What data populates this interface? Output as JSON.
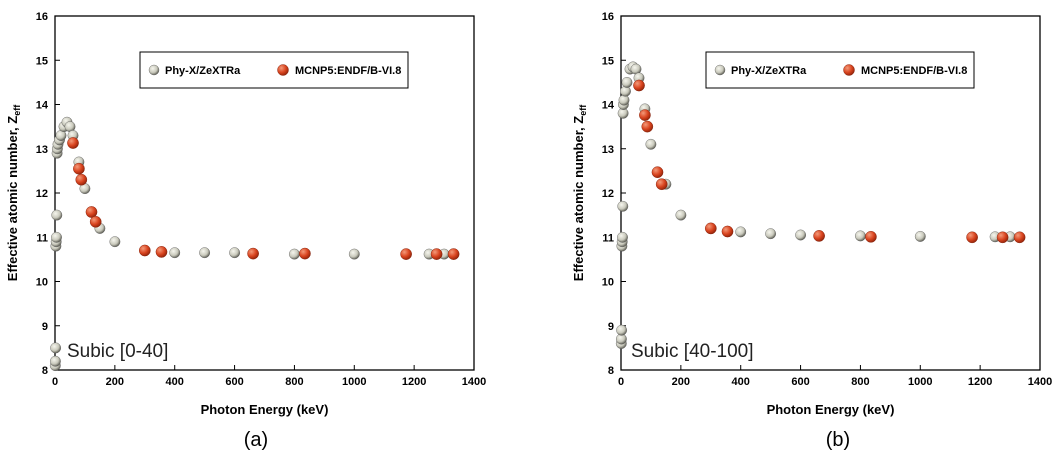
{
  "chart_data": [
    {
      "type": "scatter",
      "panel_label": "(a)",
      "annotation": "Subic [0-40]",
      "xlabel": "Photon Energy (keV)",
      "ylabel_main": "Effective atomic number, Z",
      "ylabel_sub": "eff",
      "xlim": [
        0,
        1400
      ],
      "ylim": [
        8,
        16
      ],
      "xticks": [
        "0",
        "200",
        "400",
        "600",
        "800",
        "1000",
        "1200",
        "1400"
      ],
      "yticks": [
        "8",
        "9",
        "10",
        "11",
        "12",
        "13",
        "14",
        "15",
        "16"
      ],
      "legend_position": "top-right",
      "series": [
        {
          "name": "Phy-X/ZeXTRa",
          "color": "#e0e0d4",
          "points": [
            [
              1,
              8.1
            ],
            [
              1.5,
              8.2
            ],
            [
              2,
              8.5
            ],
            [
              3,
              10.8
            ],
            [
              4,
              10.9
            ],
            [
              5,
              11.0
            ],
            [
              6,
              11.5
            ],
            [
              7,
              12.9
            ],
            [
              8,
              13.0
            ],
            [
              10,
              13.1
            ],
            [
              15,
              13.2
            ],
            [
              20,
              13.3
            ],
            [
              30,
              13.5
            ],
            [
              40,
              13.6
            ],
            [
              50,
              13.5
            ],
            [
              60,
              13.3
            ],
            [
              80,
              12.7
            ],
            [
              100,
              12.1
            ],
            [
              150,
              11.2
            ],
            [
              200,
              10.9
            ],
            [
              300,
              10.7
            ],
            [
              400,
              10.65
            ],
            [
              500,
              10.65
            ],
            [
              600,
              10.65
            ],
            [
              800,
              10.62
            ],
            [
              1000,
              10.62
            ],
            [
              1250,
              10.62
            ],
            [
              1300,
              10.62
            ]
          ]
        },
        {
          "name": "MCNP5:ENDF/B-VI.8",
          "color": "#d9441f",
          "points": [
            [
              60,
              13.13
            ],
            [
              80,
              12.55
            ],
            [
              88,
              12.3
            ],
            [
              122,
              11.57
            ],
            [
              136,
              11.35
            ],
            [
              300,
              10.7
            ],
            [
              356,
              10.67
            ],
            [
              662,
              10.63
            ],
            [
              835,
              10.63
            ],
            [
              1173,
              10.62
            ],
            [
              1275,
              10.62
            ],
            [
              1332,
              10.62
            ]
          ]
        }
      ]
    },
    {
      "type": "scatter",
      "panel_label": "(b)",
      "annotation": "Subic [40-100]",
      "xlabel": "Photon Energy (keV)",
      "ylabel_main": "Effective atomic number, Z",
      "ylabel_sub": "eff",
      "xlim": [
        0,
        1400
      ],
      "ylim": [
        8,
        16
      ],
      "xticks": [
        "0",
        "200",
        "400",
        "600",
        "800",
        "1000",
        "1200",
        "1400"
      ],
      "yticks": [
        "8",
        "9",
        "10",
        "11",
        "12",
        "13",
        "14",
        "15",
        "16"
      ],
      "legend_position": "top-right",
      "series": [
        {
          "name": "Phy-X/ZeXTRa",
          "color": "#e0e0d4",
          "points": [
            [
              1,
              8.6
            ],
            [
              1.5,
              8.7
            ],
            [
              2,
              8.9
            ],
            [
              3,
              10.8
            ],
            [
              4,
              10.9
            ],
            [
              5,
              11.0
            ],
            [
              6,
              11.7
            ],
            [
              7,
              13.8
            ],
            [
              8,
              14.0
            ],
            [
              10,
              14.1
            ],
            [
              15,
              14.3
            ],
            [
              20,
              14.5
            ],
            [
              30,
              14.8
            ],
            [
              40,
              14.85
            ],
            [
              50,
              14.8
            ],
            [
              60,
              14.6
            ],
            [
              80,
              13.9
            ],
            [
              100,
              13.1
            ],
            [
              150,
              12.2
            ],
            [
              200,
              11.5
            ],
            [
              300,
              11.2
            ],
            [
              400,
              11.12
            ],
            [
              500,
              11.08
            ],
            [
              600,
              11.05
            ],
            [
              800,
              11.03
            ],
            [
              1000,
              11.02
            ],
            [
              1250,
              11.01
            ],
            [
              1300,
              11.01
            ]
          ]
        },
        {
          "name": "MCNP5:ENDF/B-VI.8",
          "color": "#d9441f",
          "points": [
            [
              60,
              14.43
            ],
            [
              80,
              13.76
            ],
            [
              88,
              13.5
            ],
            [
              122,
              12.47
            ],
            [
              136,
              12.2
            ],
            [
              300,
              11.2
            ],
            [
              356,
              11.13
            ],
            [
              662,
              11.03
            ],
            [
              835,
              11.01
            ],
            [
              1173,
              11.0
            ],
            [
              1275,
              11.0
            ],
            [
              1332,
              11.0
            ]
          ]
        }
      ]
    }
  ]
}
